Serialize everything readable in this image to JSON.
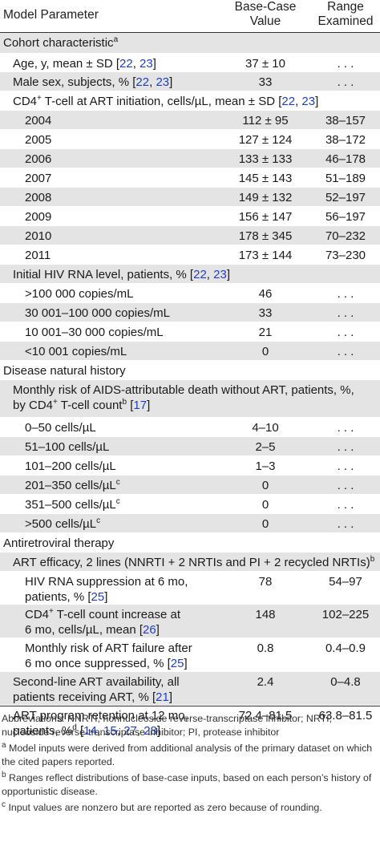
{
  "table": {
    "headers": {
      "parameter": "Model Parameter",
      "base_case": [
        "Base-Case",
        "Value"
      ],
      "range": [
        "Range",
        "Examined"
      ]
    },
    "rows": [
      {
        "level": 0,
        "shade": true,
        "height": 26,
        "label": [
          {
            "t": "Cohort characteristic"
          },
          {
            "sup": "a"
          }
        ],
        "base": "",
        "range": ""
      },
      {
        "level": 1,
        "shade": false,
        "height": 23,
        "label": [
          {
            "t": "Age, y, mean ± SD ["
          },
          {
            "c": "22"
          },
          {
            "t": ", "
          },
          {
            "c": "23"
          },
          {
            "t": "]"
          }
        ],
        "base": "37 ± 10",
        "range": ". . ."
      },
      {
        "level": 1,
        "shade": true,
        "height": 24,
        "label": [
          {
            "t": "Male sex, subjects, % ["
          },
          {
            "c": "22"
          },
          {
            "t": ", "
          },
          {
            "c": "23"
          },
          {
            "t": "]"
          }
        ],
        "base": "33",
        "range": ". . ."
      },
      {
        "level": 1,
        "shade": false,
        "height": 24,
        "label": [
          {
            "t": "CD4"
          },
          {
            "sup": "+"
          },
          {
            "t": " T-cell at ART initiation, cells/µL, mean ± SD ["
          },
          {
            "c": "22"
          },
          {
            "t": ", "
          },
          {
            "c": "23"
          },
          {
            "t": "]"
          }
        ],
        "base": "",
        "range": ""
      },
      {
        "level": 2,
        "shade": true,
        "height": 24,
        "label": [
          {
            "t": "2004"
          }
        ],
        "base": "112 ± 95",
        "range": "38–157"
      },
      {
        "level": 2,
        "shade": false,
        "height": 24,
        "label": [
          {
            "t": "2005"
          }
        ],
        "base": "127 ± 124",
        "range": "38–172"
      },
      {
        "level": 2,
        "shade": true,
        "height": 24,
        "label": [
          {
            "t": "2006"
          }
        ],
        "base": "133 ± 133",
        "range": "46–178"
      },
      {
        "level": 2,
        "shade": false,
        "height": 24,
        "label": [
          {
            "t": "2007"
          }
        ],
        "base": "145 ± 143",
        "range": "51–189"
      },
      {
        "level": 2,
        "shade": true,
        "height": 24,
        "label": [
          {
            "t": "2008"
          }
        ],
        "base": "149 ± 132",
        "range": "52–197"
      },
      {
        "level": 2,
        "shade": false,
        "height": 24,
        "label": [
          {
            "t": "2009"
          }
        ],
        "base": "156 ± 147",
        "range": "56–197"
      },
      {
        "level": 2,
        "shade": true,
        "height": 24,
        "label": [
          {
            "t": "2010"
          }
        ],
        "base": "178 ± 345",
        "range": "70–232"
      },
      {
        "level": 2,
        "shade": false,
        "height": 24,
        "label": [
          {
            "t": "2011"
          }
        ],
        "base": "173 ± 144",
        "range": "73–230"
      },
      {
        "level": 1,
        "shade": true,
        "height": 24,
        "label": [
          {
            "t": "Initial HIV RNA level, patients, % ["
          },
          {
            "c": "22"
          },
          {
            "t": ", "
          },
          {
            "c": "23"
          },
          {
            "t": "]"
          }
        ],
        "base": "",
        "range": ""
      },
      {
        "level": 2,
        "shade": false,
        "height": 24,
        "label": [
          {
            "t": ">100 000 copies/mL"
          }
        ],
        "base": "46",
        "range": ". . ."
      },
      {
        "level": 2,
        "shade": true,
        "height": 24,
        "label": [
          {
            "t": "30 001–100 000 copies/mL"
          }
        ],
        "base": "33",
        "range": ". . ."
      },
      {
        "level": 2,
        "shade": false,
        "height": 24,
        "label": [
          {
            "t": "10 001–30 000 copies/mL"
          }
        ],
        "base": "21",
        "range": ". . ."
      },
      {
        "level": 2,
        "shade": true,
        "height": 24,
        "label": [
          {
            "t": "<10 001 copies/mL"
          }
        ],
        "base": "0",
        "range": ". . ."
      },
      {
        "level": 0,
        "shade": false,
        "height": 24,
        "label": [
          {
            "t": "Disease natural history"
          }
        ],
        "base": "",
        "range": ""
      },
      {
        "level": 1,
        "shade": true,
        "height": 47,
        "label": [
          {
            "t": "Monthly risk of AIDS-attributable death without ART, patients, %,"
          },
          {
            "br": true
          },
          {
            "t": "by CD4"
          },
          {
            "sup": "+"
          },
          {
            "t": " T-cell count"
          },
          {
            "sup": "b"
          },
          {
            "t": " ["
          },
          {
            "c": "17"
          },
          {
            "t": "]"
          }
        ],
        "base": "",
        "range": ""
      },
      {
        "level": 2,
        "shade": false,
        "height": 24,
        "label": [
          {
            "t": "0–50 cells/µL"
          }
        ],
        "base": "4–10",
        "range": ". . ."
      },
      {
        "level": 2,
        "shade": true,
        "height": 24,
        "label": [
          {
            "t": "51–100 cells/µL"
          }
        ],
        "base": "2–5",
        "range": ". . ."
      },
      {
        "level": 2,
        "shade": false,
        "height": 24,
        "label": [
          {
            "t": "101–200 cells/µL"
          }
        ],
        "base": "1–3",
        "range": ". . ."
      },
      {
        "level": 2,
        "shade": true,
        "height": 24,
        "label": [
          {
            "t": "201–350 cells/µL"
          },
          {
            "sup": "c"
          }
        ],
        "base": "0",
        "range": ". . ."
      },
      {
        "level": 2,
        "shade": false,
        "height": 24,
        "label": [
          {
            "t": "351–500 cells/µL"
          },
          {
            "sup": "c"
          }
        ],
        "base": "0",
        "range": ". . ."
      },
      {
        "level": 2,
        "shade": true,
        "height": 24,
        "label": [
          {
            "t": ">500 cells/µL"
          },
          {
            "sup": "c"
          }
        ],
        "base": "0",
        "range": ". . ."
      },
      {
        "level": 0,
        "shade": false,
        "height": 24,
        "label": [
          {
            "t": "Antiretroviral therapy"
          }
        ],
        "base": "",
        "range": ""
      },
      {
        "level": 1,
        "shade": true,
        "height": 24,
        "label": [
          {
            "t": "ART efficacy, 2 lines (NNRTI + 2 NRTIs and PI + 2 recycled NRTIs)"
          },
          {
            "sup": "b"
          }
        ],
        "base": "",
        "range": ""
      },
      {
        "level": 2,
        "shade": false,
        "height": 41,
        "label": [
          {
            "t": "HIV RNA suppression at 6 mo,"
          },
          {
            "br": true
          },
          {
            "t": "patients, % ["
          },
          {
            "c": "25"
          },
          {
            "t": "]"
          }
        ],
        "base": "78",
        "range": "54–97"
      },
      {
        "level": 2,
        "shade": true,
        "height": 42,
        "label": [
          {
            "t": "CD4"
          },
          {
            "sup": "+"
          },
          {
            "t": " T-cell count increase at"
          },
          {
            "br": true
          },
          {
            "t": "6 mo, cells/µL, mean ["
          },
          {
            "c": "26"
          },
          {
            "t": "]"
          }
        ],
        "base": "148",
        "range": "102–225"
      },
      {
        "level": 2,
        "shade": false,
        "height": 42,
        "label": [
          {
            "t": "Monthly risk of ART failure after"
          },
          {
            "br": true
          },
          {
            "t": "6 mo once suppressed, % ["
          },
          {
            "c": "25"
          },
          {
            "t": "]"
          }
        ],
        "base": "0.8",
        "range": "0.4–0.9"
      },
      {
        "level": 1,
        "shade": true,
        "height": 42,
        "label": [
          {
            "t": "Second-line ART availability, all"
          },
          {
            "br": true
          },
          {
            "t": "patients receiving ART, % ["
          },
          {
            "c": "21"
          },
          {
            "t": "]"
          }
        ],
        "base": "2.4",
        "range": "0–4.8"
      },
      {
        "level": 1,
        "shade": false,
        "height": 45,
        "label": [
          {
            "t": "ART program retention at 12 mo,"
          },
          {
            "br": true
          },
          {
            "t": "patients, %"
          },
          {
            "sup": "d"
          },
          {
            "t": " ["
          },
          {
            "c": "14"
          },
          {
            "t": ", "
          },
          {
            "c": "15"
          },
          {
            "t": ", "
          },
          {
            "c": "27"
          },
          {
            "t": ", "
          },
          {
            "c": "28"
          },
          {
            "t": "]"
          }
        ],
        "base": "72.4–81.5",
        "range": "63.8–81.5"
      }
    ]
  },
  "notes": [
    {
      "sup": "",
      "text": "Abbreviations: NNRTI, nonnucleoside reverse-transcriptase inhibitor; NRTI, nucleoside reverse-transcriptase inhibitor; PI, protease inhibitor"
    },
    {
      "sup": "a",
      "text": " Model inputs were derived from additional analysis of the primary dataset on which the cited papers reported."
    },
    {
      "sup": "b",
      "text": " Ranges reflect distributions of base-case inputs, based on each person’s history of opportunistic disease."
    },
    {
      "sup": "c",
      "text": " Input values are nonzero but are reported as zero because of rounding."
    }
  ],
  "colors": {
    "shade": "#e4e4e4",
    "citation": "#1f3fbf",
    "rule": "#333333"
  }
}
